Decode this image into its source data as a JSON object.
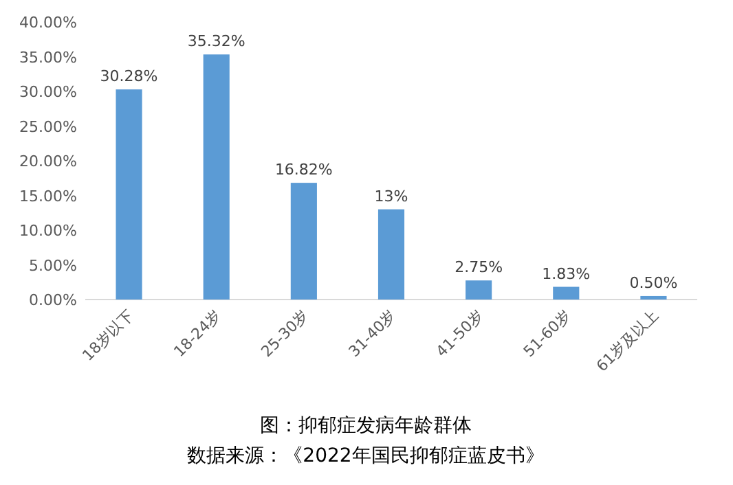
{
  "chart_data": {
    "type": "bar",
    "categories": [
      "18岁以下",
      "18-24岁",
      "25-30岁",
      "31-40岁",
      "41-50岁",
      "51-60岁",
      "61岁及以上"
    ],
    "values": [
      30.28,
      35.32,
      16.82,
      13,
      2.75,
      1.83,
      0.5
    ],
    "value_labels": [
      "30.28%",
      "35.32%",
      "16.82%",
      "13%",
      "2.75%",
      "1.83%",
      "0.50%"
    ],
    "color": "#5b9bd5",
    "ylim": [
      0,
      40
    ],
    "yticks": [
      {
        "value": 0,
        "label": "0.00%"
      },
      {
        "value": 5,
        "label": "5.00%"
      },
      {
        "value": 10,
        "label": "10.00%"
      },
      {
        "value": 15,
        "label": "15.00%"
      },
      {
        "value": 20,
        "label": "20.00%"
      },
      {
        "value": 25,
        "label": "25.00%"
      },
      {
        "value": 30,
        "label": "30.00%"
      },
      {
        "value": 35,
        "label": "35.00%"
      },
      {
        "value": 40,
        "label": "40.00%"
      }
    ],
    "annotations": [
      "图：抑郁症发病年龄群体",
      "数据来源：《2022年国民抑郁症蓝皮书》"
    ]
  }
}
